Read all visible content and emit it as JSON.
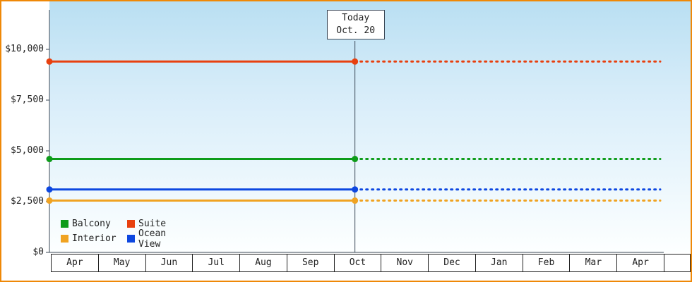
{
  "chart_data": {
    "type": "line",
    "title": "",
    "xlabel": "",
    "ylabel": "",
    "x_categories": [
      "Apr",
      "May",
      "Jun",
      "Jul",
      "Aug",
      "Sep",
      "Oct",
      "Nov",
      "Dec",
      "Jan",
      "Feb",
      "Mar",
      "Apr"
    ],
    "y_ticks": [
      {
        "value": 0,
        "label": "$0"
      },
      {
        "value": 2500,
        "label": "$2,500"
      },
      {
        "value": 5000,
        "label": "$5,000"
      },
      {
        "value": 7500,
        "label": "$7,500"
      },
      {
        "value": 10000,
        "label": "$10,000"
      }
    ],
    "ylim": [
      0,
      11900
    ],
    "grid": false,
    "series": [
      {
        "name": "Suite",
        "color": "#e8400f",
        "value": 9400,
        "style": "solid-then-dotted"
      },
      {
        "name": "Balcony",
        "color": "#0e9c1a",
        "value": 4600,
        "style": "solid-then-dotted"
      },
      {
        "name": "Ocean View",
        "color": "#0d47e0",
        "value": 3100,
        "style": "solid-then-dotted"
      },
      {
        "name": "Interior",
        "color": "#f0a322",
        "value": 2550,
        "style": "solid-then-dotted"
      }
    ],
    "today": {
      "line1": "Today",
      "line2": "Oct. 20",
      "category": "Oct",
      "fraction": 0.45
    },
    "legend_rows": [
      [
        "Balcony",
        "Suite"
      ],
      [
        "Interior",
        "Ocean View"
      ]
    ],
    "legend_position": "bottom-left"
  },
  "frame": {
    "border_color": "#ef8807",
    "axis_color": "#3a4756",
    "text_color": "#222222"
  }
}
